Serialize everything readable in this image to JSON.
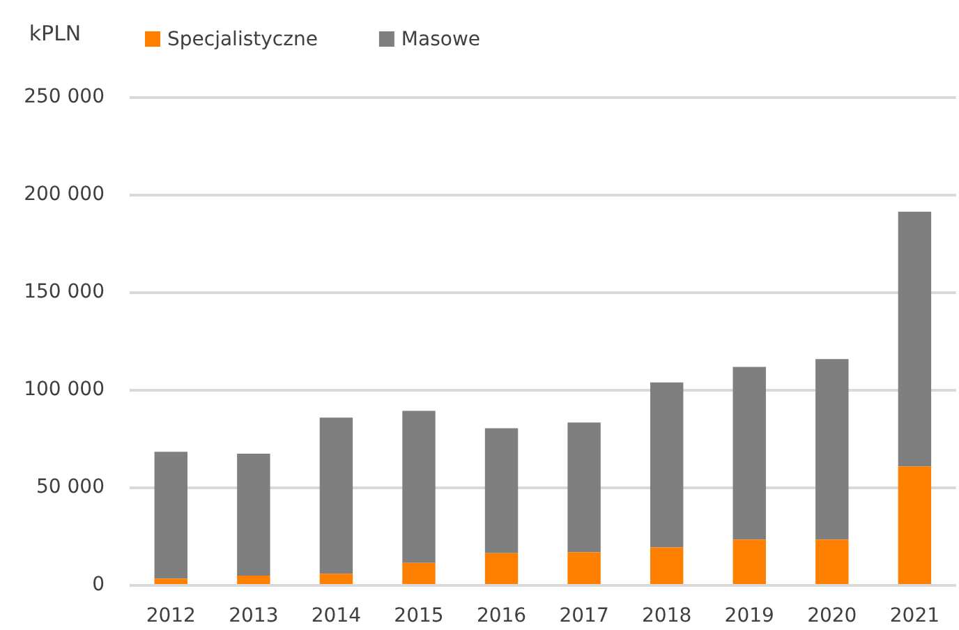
{
  "chart_data": {
    "type": "bar",
    "ylabel": "kPLN",
    "categories": [
      "2012",
      "2013",
      "2014",
      "2015",
      "2016",
      "2017",
      "2018",
      "2019",
      "2020",
      "2021"
    ],
    "series": [
      {
        "name": "Specjalistyczne",
        "color": "#ff7f00",
        "values": [
          3500,
          5000,
          6000,
          11500,
          16500,
          17000,
          19500,
          23500,
          23500,
          61000
        ]
      },
      {
        "name": "Masowe",
        "color": "#7f7f7f",
        "values": [
          65000,
          62500,
          80000,
          78000,
          64000,
          66500,
          84500,
          88500,
          92500,
          130500
        ]
      }
    ],
    "stacked": true,
    "ylim": [
      0,
      250000
    ],
    "yticks": [
      0,
      {
        "value": 50000,
        "label": "50 000"
      },
      {
        "value": 100000,
        "label": "100 000"
      },
      {
        "value": 150000,
        "label": "150 000"
      },
      {
        "value": 200000,
        "label": "200 000"
      },
      {
        "value": 250000,
        "label": "250 000"
      }
    ],
    "grid": "y",
    "legend": "top left"
  }
}
